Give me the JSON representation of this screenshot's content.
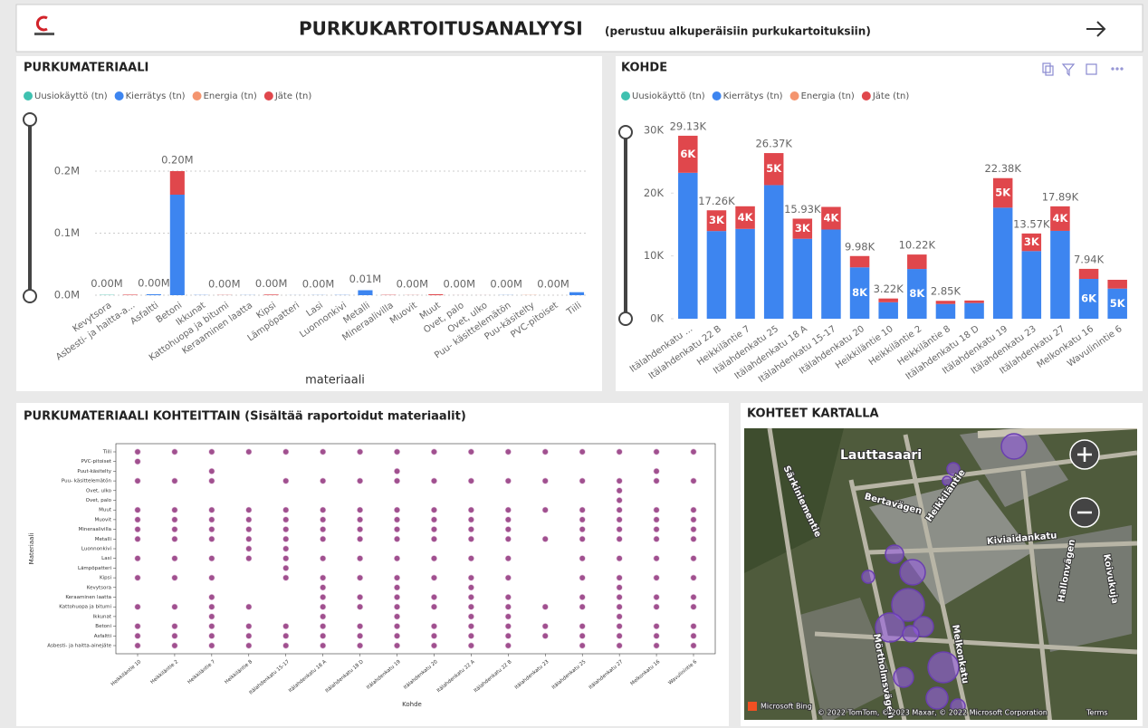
{
  "header": {
    "title": "PURKUKARTOITUSANALYYSI",
    "subtitle": "(perustuu alkuperäisiin purkukartoituksiin)"
  },
  "chart_data": [
    {
      "type": "bar",
      "title": "PURKUMATERIAALI",
      "x_label": "materiaali",
      "stacked": true,
      "grid": true,
      "legend": "top",
      "categories": [
        "Kevytsora",
        "Asbesti- ja haitta-a...",
        "Asfaltti",
        "Betoni",
        "Ikkunat",
        "Kattohuopa ja bitumi",
        "Keraaminen laatta",
        "Kipsi",
        "Lämpöpatteri",
        "Lasi",
        "Luonnonkivi",
        "Metalli",
        "Mineraalivilla",
        "Muovit",
        "Muut",
        "Ovet, palo",
        "Ovet, ulko",
        "Puu- käsittelemätön",
        "Puu-käsitelty",
        "PVC-pitoiset",
        "Tiili"
      ],
      "series": [
        {
          "name": "Uusiokäyttö (tn)",
          "color": "#3fc1b0",
          "values": [
            500,
            0,
            0,
            0,
            0,
            0,
            0,
            0,
            0,
            0,
            0,
            0,
            0,
            0,
            0,
            0,
            0,
            0,
            0,
            0,
            0
          ]
        },
        {
          "name": "Kierrätys (tn)",
          "color": "#3d85f0",
          "values": [
            0,
            0,
            1500,
            162000,
            300,
            0,
            200,
            0,
            100,
            200,
            300,
            8000,
            0,
            0,
            0,
            0,
            0,
            200,
            0,
            0,
            4800
          ]
        },
        {
          "name": "Energia (tn)",
          "color": "#f4956f",
          "values": [
            0,
            0,
            0,
            0,
            0,
            0,
            0,
            0,
            0,
            0,
            0,
            0,
            0,
            0,
            0,
            0,
            0,
            0,
            300,
            0,
            0
          ]
        },
        {
          "name": "Jäte (tn)",
          "color": "#e0474c",
          "values": [
            0,
            800,
            0,
            38000,
            0,
            300,
            0,
            1000,
            0,
            0,
            0,
            0,
            500,
            200,
            1500,
            50,
            50,
            0,
            0,
            10,
            0
          ]
        }
      ],
      "totals": [
        500,
        null,
        1500,
        200000,
        null,
        300,
        null,
        1000,
        null,
        200,
        null,
        8000,
        null,
        200,
        null,
        50,
        null,
        200,
        null,
        10,
        null
      ],
      "total_labels": [
        "0.00M",
        null,
        "0.00M",
        "0.20M",
        null,
        "0.00M",
        null,
        "0.00M",
        null,
        "0.00M",
        null,
        "0.01M",
        null,
        "0.00M",
        null,
        "0.00M",
        null,
        "0.00M",
        null,
        "0.00M",
        null
      ],
      "ylim": [
        0,
        270000
      ],
      "yticks": [
        {
          "value": 0,
          "label": "0.0M"
        },
        {
          "value": 100000,
          "label": "0.1M"
        },
        {
          "value": 200000,
          "label": "0.2M"
        }
      ]
    },
    {
      "type": "bar",
      "title": "KOHDE",
      "stacked": true,
      "grid": false,
      "legend": "top",
      "categories": [
        "Itälahdenkatu ...",
        "Itälahdenkatu 22 B",
        "Heikkiläntie 7",
        "Itälahdenkatu 25",
        "Itälahdenkatu 18 A",
        "Itälahdenkatu 15-17",
        "Itälahdenkatu 20",
        "Heikkiläntie 10",
        "Heikkiläntie 2",
        "Heikkiläntie 8",
        "Itälahdenkatu 18 D",
        "Itälahdenkatu 19",
        "Itälahdenkatu 23",
        "Itälahdenkatu 27",
        "Melkonkatu 16",
        "Wavulinintie 6"
      ],
      "series": [
        {
          "name": "Uusiokäyttö (tn)",
          "color": "#3fc1b0",
          "values": [
            0,
            0,
            0,
            0,
            0,
            0,
            0,
            0,
            0,
            0,
            0,
            0,
            0,
            0,
            0,
            0
          ]
        },
        {
          "name": "Kierrätys (tn)",
          "color": "#3d85f0",
          "values": [
            23230,
            13960,
            14300,
            21270,
            12730,
            14200,
            8180,
            2620,
            7920,
            2350,
            2500,
            17680,
            10770,
            13990,
            6340,
            4800
          ],
          "value_labels": [
            null,
            null,
            null,
            null,
            null,
            null,
            "8K",
            null,
            "8K",
            null,
            null,
            null,
            null,
            null,
            "6K",
            "5K"
          ]
        },
        {
          "name": "Energia (tn)",
          "color": "#f4956f",
          "values": [
            0,
            0,
            0,
            0,
            0,
            0,
            0,
            0,
            0,
            0,
            0,
            0,
            0,
            0,
            0,
            0
          ]
        },
        {
          "name": "Jäte (tn)",
          "color": "#e0474c",
          "values": [
            5900,
            3300,
            3600,
            5100,
            3200,
            3600,
            1800,
            600,
            2300,
            500,
            400,
            4700,
            2800,
            3900,
            1600,
            1400
          ],
          "value_labels": [
            "6K",
            "3K",
            "4K",
            "5K",
            "3K",
            "4K",
            null,
            null,
            null,
            null,
            null,
            "5K",
            "3K",
            "4K",
            null,
            null
          ]
        }
      ],
      "totals": [
        29130,
        17260,
        null,
        26370,
        15930,
        null,
        9980,
        3220,
        10220,
        2850,
        null,
        22380,
        13570,
        17890,
        7940,
        null
      ],
      "total_labels": [
        "29.13K",
        "17.26K",
        null,
        "26.37K",
        "15.93K",
        null,
        "9.98K",
        "3.22K",
        "10.22K",
        "2.85K",
        null,
        "22.38K",
        "13.57K",
        "17.89K",
        "7.94K",
        null
      ],
      "ylim": [
        0,
        32000
      ],
      "yticks": [
        {
          "value": 0,
          "label": "0K"
        },
        {
          "value": 10000,
          "label": "10K"
        },
        {
          "value": 20000,
          "label": "20K"
        },
        {
          "value": 30000,
          "label": "30K"
        }
      ]
    },
    {
      "type": "scatter",
      "title": "PURKUMATERIAALI KOHTEITTAIN (Sisältää raportoidut materiaalit)",
      "x_label": "Kohde",
      "y_label": "Materiaali",
      "color": "#a0508f",
      "categories": [
        "Heikkiläntie 10",
        "Heikkiläntie 2",
        "Heikkiläntie 7",
        "Heikkiläntie 8",
        "Itälahdenkatu 15-17",
        "Itälahdenkatu 18 A",
        "Itälahdenkatu 18 D",
        "Itälahdenkatu 19",
        "Itälahdenkatu 20",
        "Itälahdenkatu 22 A",
        "Itälahdenkatu 22 B",
        "Itälahdenkatu 23",
        "Itälahdenkatu 25",
        "Itälahdenkatu 27",
        "Melkonkatu 16",
        "Wavulinintie 6"
      ],
      "y_categories": [
        "Tiili",
        "PVC-pitoiset",
        "Puut-käsitelty",
        "Puu- käsittelemätön",
        "Ovet, ulko",
        "Ovet, palo",
        "Muut",
        "Muovit",
        "Mineraalivilla",
        "Metalli",
        "Luonnonkivi",
        "Lasi",
        "Lämpöpatteri",
        "Kipsi",
        "Kevytsora",
        "Keraaminen laatta",
        "Kattohuopa ja bitumi",
        "Ikkunat",
        "Betoni",
        "Asfaltti",
        "Asbesti- ja haitta-ainejäte"
      ],
      "matrix": [
        [
          1,
          1,
          1,
          1,
          1,
          1,
          1,
          1,
          1,
          1,
          1,
          1,
          1,
          1,
          1,
          1
        ],
        [
          1,
          0,
          0,
          0,
          0,
          0,
          0,
          0,
          0,
          0,
          0,
          0,
          0,
          0,
          0,
          0
        ],
        [
          0,
          0,
          1,
          0,
          0,
          0,
          0,
          1,
          0,
          0,
          0,
          0,
          0,
          0,
          1,
          0
        ],
        [
          1,
          1,
          1,
          0,
          1,
          1,
          1,
          1,
          1,
          1,
          1,
          1,
          1,
          1,
          1,
          1
        ],
        [
          0,
          0,
          0,
          0,
          0,
          0,
          0,
          0,
          0,
          0,
          0,
          0,
          0,
          1,
          0,
          0
        ],
        [
          0,
          0,
          0,
          0,
          0,
          0,
          0,
          0,
          0,
          0,
          0,
          0,
          0,
          1,
          0,
          0
        ],
        [
          1,
          1,
          1,
          1,
          1,
          1,
          1,
          1,
          1,
          1,
          1,
          1,
          1,
          1,
          1,
          1
        ],
        [
          1,
          1,
          1,
          1,
          1,
          1,
          1,
          1,
          1,
          1,
          1,
          0,
          1,
          1,
          1,
          1
        ],
        [
          1,
          1,
          1,
          1,
          1,
          1,
          1,
          1,
          1,
          1,
          1,
          0,
          1,
          1,
          1,
          1
        ],
        [
          1,
          1,
          1,
          1,
          1,
          1,
          1,
          1,
          1,
          1,
          1,
          1,
          1,
          1,
          1,
          1
        ],
        [
          0,
          0,
          0,
          1,
          1,
          0,
          0,
          0,
          0,
          0,
          0,
          0,
          0,
          0,
          0,
          0
        ],
        [
          1,
          1,
          1,
          1,
          1,
          1,
          1,
          1,
          1,
          1,
          1,
          0,
          1,
          1,
          1,
          1
        ],
        [
          0,
          0,
          0,
          0,
          1,
          0,
          0,
          0,
          0,
          0,
          0,
          0,
          0,
          0,
          0,
          0
        ],
        [
          1,
          1,
          1,
          0,
          1,
          1,
          1,
          1,
          1,
          1,
          1,
          0,
          1,
          1,
          1,
          1
        ],
        [
          0,
          0,
          0,
          0,
          0,
          1,
          0,
          1,
          0,
          1,
          0,
          0,
          0,
          1,
          0,
          0
        ],
        [
          0,
          0,
          1,
          0,
          0,
          1,
          1,
          1,
          1,
          1,
          1,
          0,
          1,
          1,
          1,
          1
        ],
        [
          1,
          1,
          1,
          1,
          0,
          1,
          1,
          1,
          1,
          1,
          1,
          1,
          1,
          1,
          1,
          1
        ],
        [
          0,
          0,
          1,
          0,
          0,
          1,
          0,
          1,
          0,
          1,
          1,
          0,
          0,
          1,
          0,
          0
        ],
        [
          1,
          1,
          1,
          1,
          1,
          1,
          1,
          1,
          1,
          1,
          1,
          1,
          1,
          1,
          1,
          1
        ],
        [
          1,
          1,
          1,
          1,
          1,
          1,
          1,
          1,
          1,
          1,
          1,
          1,
          1,
          1,
          1,
          1
        ],
        [
          1,
          1,
          1,
          1,
          1,
          1,
          1,
          1,
          1,
          1,
          1,
          0,
          1,
          1,
          1,
          1
        ]
      ]
    }
  ],
  "map": {
    "title": "KOHTEET KARTALLA",
    "labels": [
      "Lauttasaari",
      "Bertavägen",
      "Heikkiläntie",
      "Kiviaidankatu",
      "Melkonkatu",
      "Mörtholmsvägen",
      "Hallonvägen",
      "Koivukuja",
      "Särkiniementie"
    ],
    "attribution": "Microsoft Bing",
    "copyright": "© 2022 TomTom, © 2023 Maxar, © 2022 Microsoft Corporation",
    "terms": "Terms"
  }
}
